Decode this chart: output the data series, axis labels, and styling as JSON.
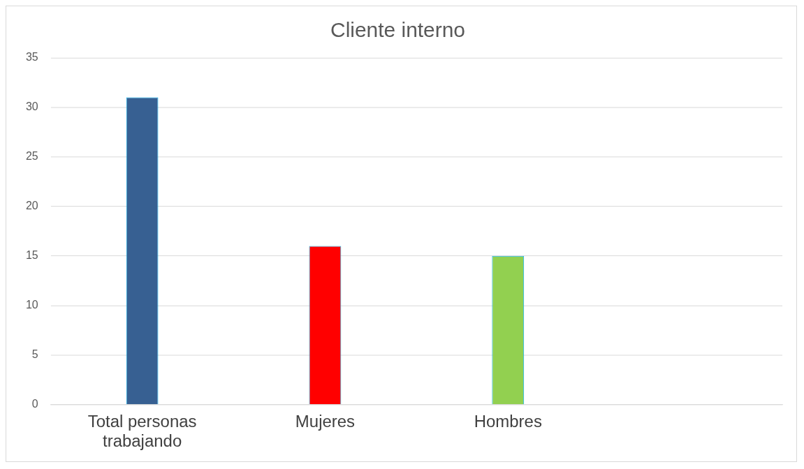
{
  "chart_data": {
    "type": "bar",
    "title": "Cliente interno",
    "categories": [
      "Total personas trabajando",
      "Mujeres",
      "Hombres",
      null
    ],
    "values": [
      31,
      16,
      15,
      null
    ],
    "colors": [
      "#376092",
      "#ff0000",
      "#92d050",
      "#376092"
    ],
    "ylim": [
      0,
      35
    ],
    "yticks": [
      0,
      5,
      10,
      15,
      20,
      25,
      30,
      35
    ],
    "grid": "y",
    "legend": false
  }
}
